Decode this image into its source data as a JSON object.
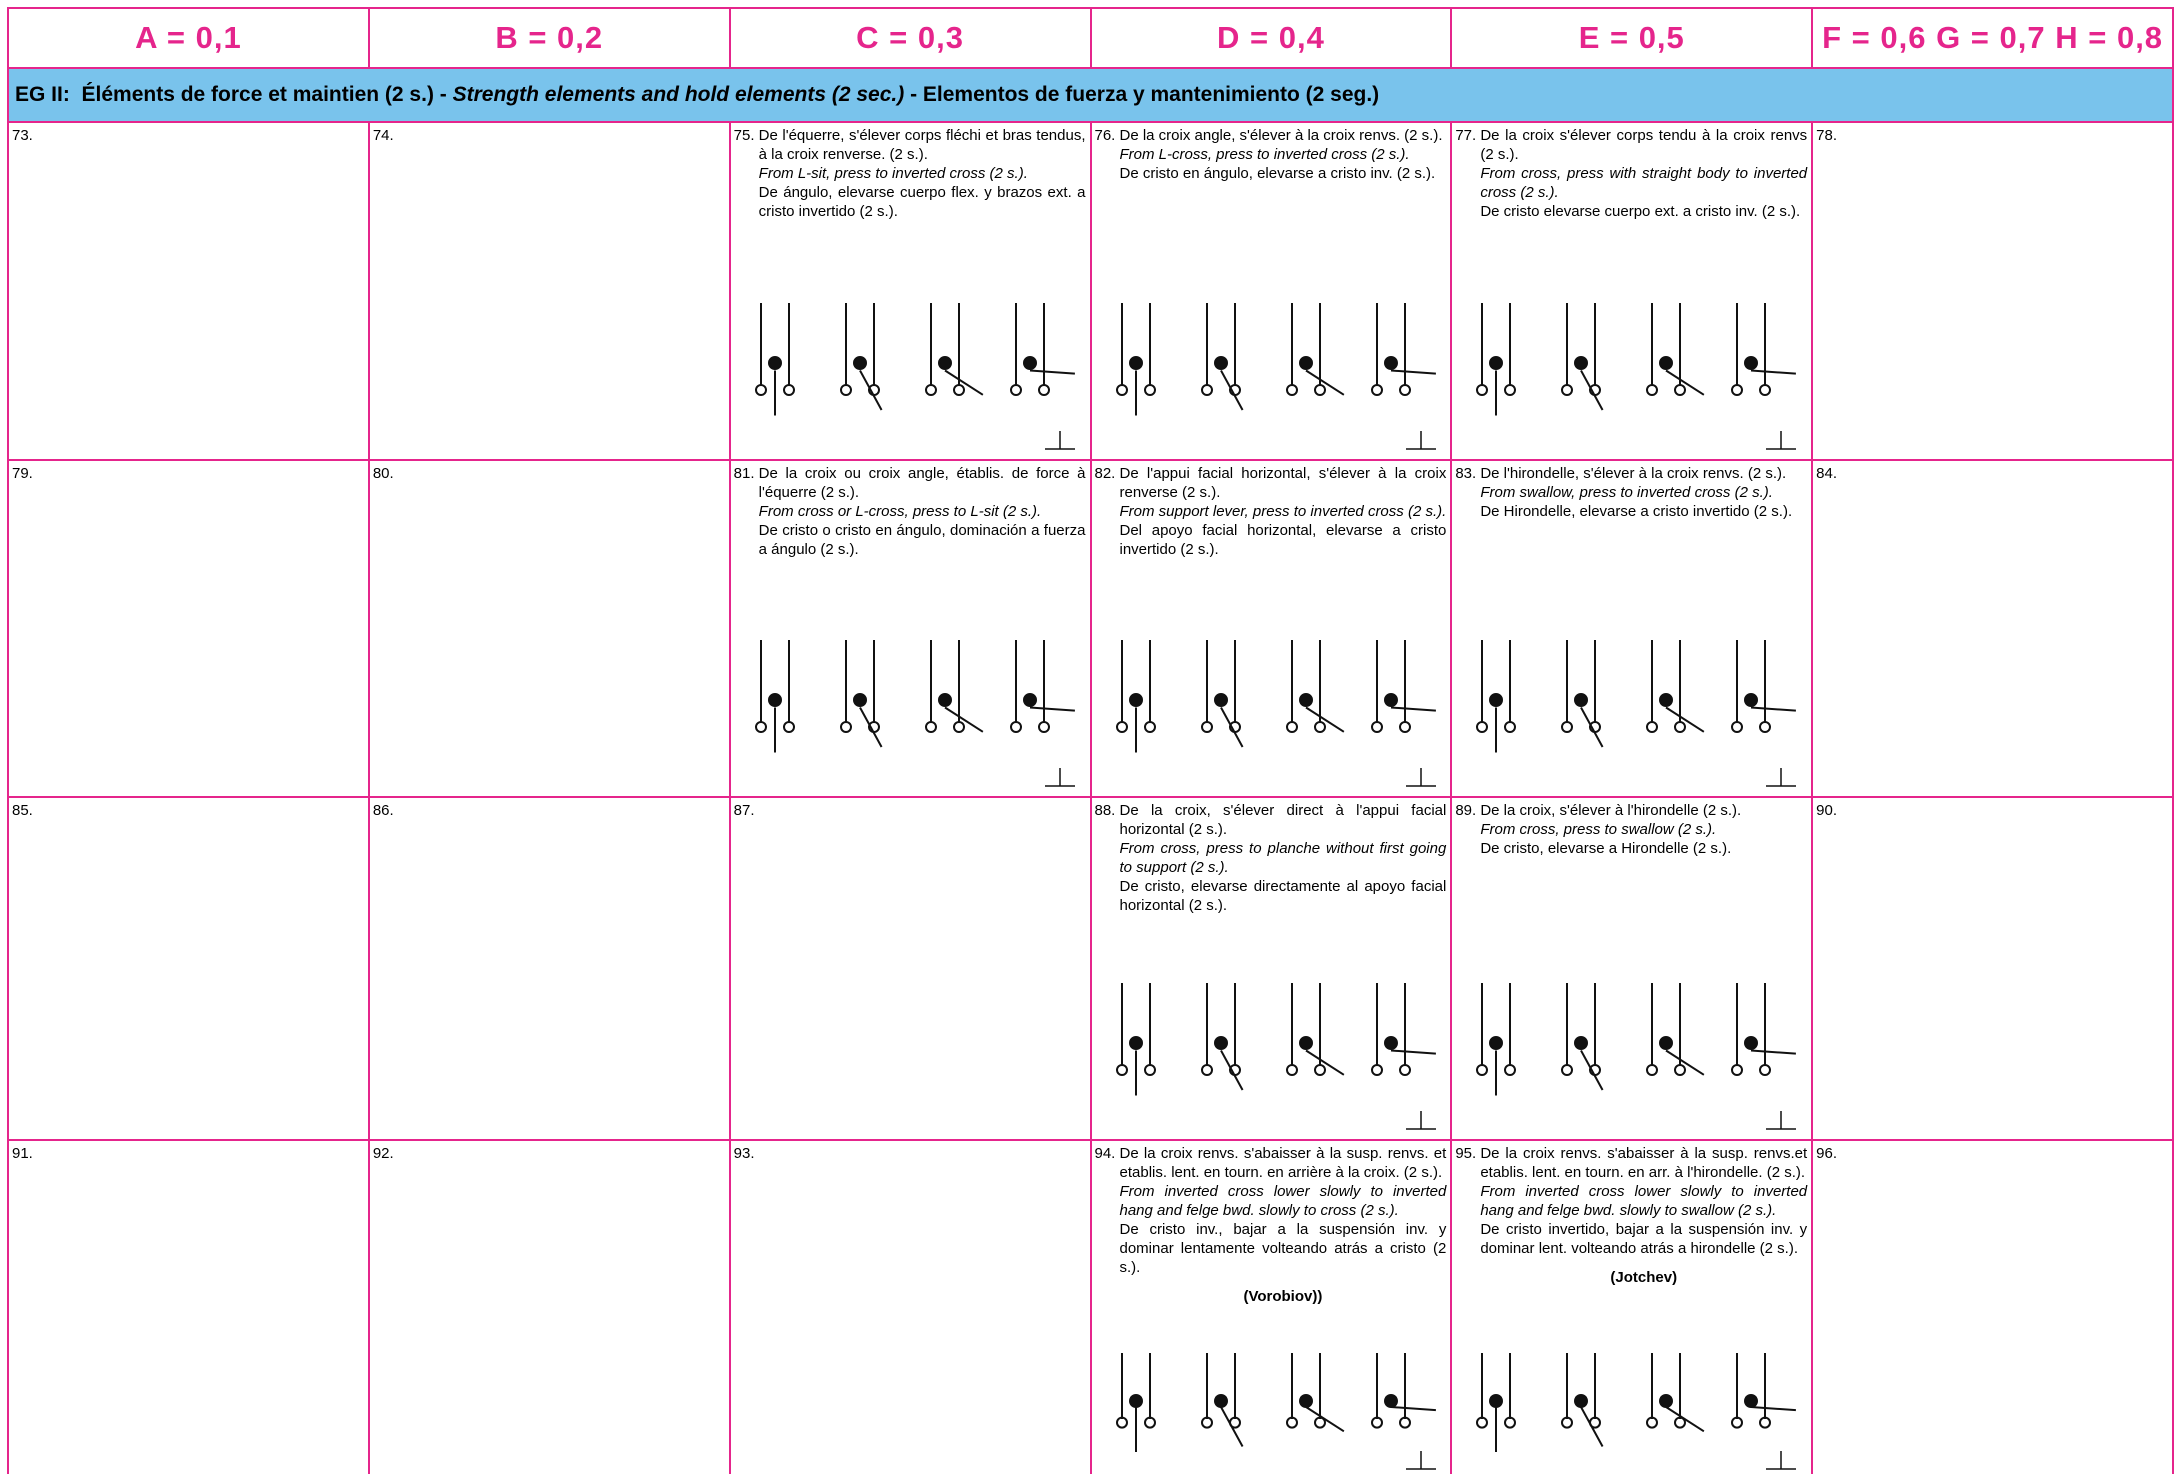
{
  "header": {
    "columns": [
      "A = 0,1",
      "B = 0,2",
      "C = 0,3",
      "D = 0,4",
      "E = 0,5",
      "F = 0,6 G = 0,7 H = 0,8"
    ]
  },
  "section": {
    "label": "EG II:  Éléments de force et maintien (2 s.) - ",
    "en": "Strength elements and hold elements (2 sec.)",
    "es": " - Elementos de fuerza y mantenimiento (2 seg.)"
  },
  "rows": [
    [
      {
        "number": "73."
      },
      {
        "number": "74."
      },
      {
        "number": "75.",
        "fr": "De l'équerre, s'élever corps fléchi et bras tendus, à la croix renverse. (2 s.).",
        "en": "From L-sit, press to inverted cross (2 s.).",
        "es": "De ángulo, elevarse cuerpo flex. y brazos ext. a cristo invertido (2 s.)."
      },
      {
        "number": "76.",
        "fr": "De la croix angle, s'élever à la croix renvs. (2 s.).",
        "en": "From L-cross, press to inverted cross (2 s.).",
        "es": "De cristo en ángulo, elevarse a cristo inv. (2 s.)."
      },
      {
        "number": "77.",
        "fr": "De la croix s'élever corps tendu à la croix renvs (2 s.).",
        "en": "From cross, press with straight body to inverted cross (2 s.).",
        "es": "De cristo elevarse cuerpo ext. a cristo inv. (2 s.)."
      },
      {
        "number": "78."
      }
    ],
    [
      {
        "number": "79."
      },
      {
        "number": "80."
      },
      {
        "number": "81.",
        "fr": "De la croix ou croix angle, établis. de force à l'équerre (2 s.).",
        "en": "From cross or L-cross, press to L-sit (2 s.).",
        "es": "De cristo o cristo en ángulo, dominación a fuerza a ángulo (2 s.)."
      },
      {
        "number": "82.",
        "fr": "De l'appui facial horizontal, s'élever à la croix renverse (2 s.).",
        "en": "From support lever, press to  inverted cross (2 s.).",
        "es": "Del apoyo facial horizontal, elevarse a cristo invertido (2 s.)."
      },
      {
        "number": "83.",
        "fr": "De l'hirondelle, s'élever à la croix renvs. (2 s.).",
        "en": "From swallow, press to inverted cross (2 s.).",
        "es": "De Hirondelle, elevarse a cristo invertido (2 s.)."
      },
      {
        "number": "84."
      }
    ],
    [
      {
        "number": "85."
      },
      {
        "number": "86."
      },
      {
        "number": "87."
      },
      {
        "number": "88.",
        "fr": "De la croix, s'élever direct à l'appui facial horizontal (2 s.).",
        "en": "From cross, press to planche without first going to support (2 s.).",
        "es": "De cristo, elevarse directamente al apoyo facial horizontal (2 s.)."
      },
      {
        "number": "89.",
        "fr": "De la croix, s'élever à l'hirondelle (2 s.).",
        "en": "From cross, press to swallow (2 s.).",
        "es": "De cristo, elevarse a Hirondelle (2 s.)."
      },
      {
        "number": "90."
      }
    ],
    [
      {
        "number": "91."
      },
      {
        "number": "92."
      },
      {
        "number": "93."
      },
      {
        "number": "94.",
        "fr": "De la croix renvs. s'abaisser à la susp. renvs. et etablis. lent. en tourn. en arrière à la croix. (2 s.).",
        "en": "From inverted cross lower slowly to inverted hang and felge bwd. slowly to cross (2 s.).",
        "es": "De cristo inv., bajar a la suspensión inv. y dominar lentamente volteando atrás a cristo (2 s.).",
        "name": "(Vorobiov))"
      },
      {
        "number": "95.",
        "fr": "De la croix renvs. s'abaisser à la susp. renvs.et etablis. lent. en tourn. en arr. à l'hirondelle. (2 s.).",
        "en": "From inverted cross lower slowly to inverted hang and felge bwd. slowly to swallow (2 s.).",
        "es": "De cristo invertido, bajar a la suspensión inv. y dominar lent. volteando atrás a hirondelle (2 s.).",
        "name": "(Jotchev)"
      },
      {
        "number": "96."
      }
    ]
  ]
}
